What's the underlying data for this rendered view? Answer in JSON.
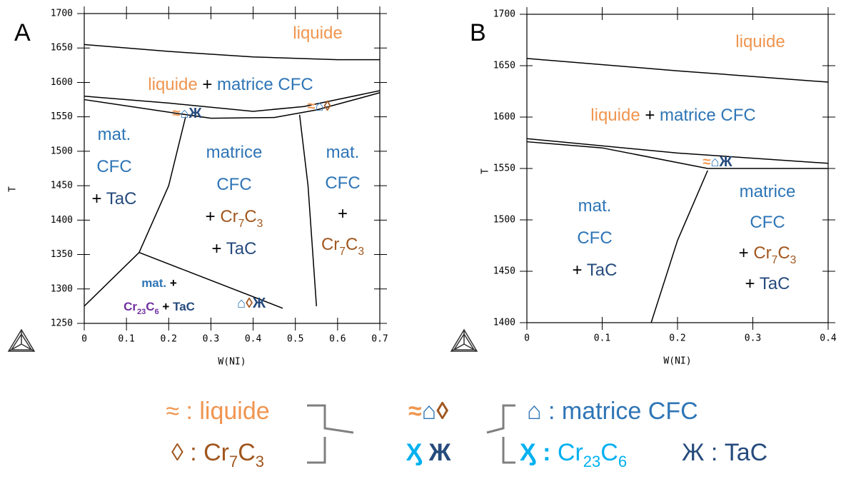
{
  "chart_data": [
    {
      "type": "line",
      "label": "A",
      "xlabel": "W(NI)",
      "ylabel": "T",
      "xlim": [
        0,
        0.7
      ],
      "ylim": [
        1250,
        1700
      ],
      "xticks": [
        0,
        0.1,
        0.2,
        0.3,
        0.4,
        0.5,
        0.6,
        0.7
      ],
      "yticks": [
        1250,
        1300,
        1350,
        1400,
        1450,
        1500,
        1550,
        1600,
        1650,
        1700
      ],
      "series": [
        {
          "color": "#000000",
          "x": [
            0,
            0.2,
            0.4,
            0.6,
            0.7
          ],
          "values": [
            1655,
            1645,
            1637,
            1633,
            1633
          ]
        },
        {
          "color": "#000000",
          "x": [
            0,
            0.2,
            0.4,
            0.52,
            0.7
          ],
          "values": [
            1580,
            1570,
            1558,
            1565,
            1588
          ]
        },
        {
          "color": "#000000",
          "x": [
            0,
            0.22,
            0.3,
            0.45,
            0.55,
            0.7
          ],
          "values": [
            1575,
            1555,
            1548,
            1549,
            1560,
            1585
          ]
        },
        {
          "color": "#000000",
          "x": [
            0.24,
            0.2,
            0.13
          ],
          "values": [
            1550,
            1450,
            1353
          ]
        },
        {
          "color": "#000000",
          "x": [
            0.51,
            0.53,
            0.55
          ],
          "values": [
            1553,
            1450,
            1275
          ]
        },
        {
          "color": "#000000",
          "x": [
            0.13,
            0.47
          ],
          "values": [
            1353,
            1272
          ]
        },
        {
          "color": "#000000",
          "x": [
            0,
            0.13
          ],
          "values": [
            1275,
            1353
          ]
        }
      ],
      "annotations": [
        {
          "lines": [
            [
              {
                "text": "liquide",
                "color": "#f0954f"
              }
            ]
          ]
        },
        {
          "lines": [
            [
              {
                "text": "liquide",
                "color": "#f0954f"
              },
              {
                "text": " + ",
                "color": "#000000"
              },
              {
                "text": "matrice CFC",
                "color": "#2e75b6"
              }
            ]
          ]
        },
        {
          "small": true,
          "lines": [
            [
              {
                "text": "≈",
                "color": "#f0954f",
                "bold": true
              },
              {
                "text": "⌂",
                "color": "#2e75b6",
                "bold": true
              },
              {
                "text": "Ж",
                "color": "#264b7d",
                "bold": true
              }
            ]
          ]
        },
        {
          "small": true,
          "lines": [
            [
              {
                "text": "≈",
                "color": "#f0954f",
                "bold": true
              },
              {
                "text": "⌂",
                "color": "#2e75b6",
                "bold": true
              },
              {
                "text": "◊",
                "color": "#a0561e",
                "bold": true
              }
            ]
          ]
        },
        {
          "lines": [
            [
              {
                "text": "mat.",
                "color": "#2e75b6"
              }
            ],
            [
              {
                "text": "CFC",
                "color": "#2e75b6"
              }
            ],
            [
              {
                "text": "+ ",
                "color": "#000000"
              },
              {
                "text": "TaC",
                "color": "#264b7d"
              }
            ]
          ]
        },
        {
          "lines": [
            [
              {
                "text": "matrice",
                "color": "#2e75b6"
              }
            ],
            [
              {
                "text": "CFC",
                "color": "#2e75b6"
              }
            ],
            [
              {
                "text": "+ ",
                "color": "#000000"
              },
              {
                "text": "Cr",
                "color": "#a0561e"
              },
              {
                "text": "7",
                "color": "#a0561e",
                "sub": true
              },
              {
                "text": "C",
                "color": "#a0561e"
              },
              {
                "text": "3",
                "color": "#a0561e",
                "sub": true
              }
            ],
            [
              {
                "text": "+ ",
                "color": "#000000"
              },
              {
                "text": "TaC",
                "color": "#264b7d"
              }
            ]
          ]
        },
        {
          "lines": [
            [
              {
                "text": "mat.",
                "color": "#2e75b6"
              }
            ],
            [
              {
                "text": "CFC",
                "color": "#2e75b6"
              }
            ],
            [
              {
                "text": "+",
                "color": "#000000"
              }
            ],
            [
              {
                "text": "Cr",
                "color": "#a0561e"
              },
              {
                "text": "7",
                "color": "#a0561e",
                "sub": true
              },
              {
                "text": "C",
                "color": "#a0561e"
              },
              {
                "text": "3",
                "color": "#a0561e",
                "sub": true
              }
            ]
          ]
        },
        {
          "tiny": true,
          "lines": [
            [
              {
                "text": "mat.",
                "color": "#2e75b6",
                "bold": true
              },
              {
                "text": " +",
                "color": "#000000",
                "bold": true
              }
            ],
            [
              {
                "text": "Cr",
                "color": "#7030a0",
                "bold": true
              },
              {
                "text": "23",
                "color": "#7030a0",
                "bold": true,
                "sub": true
              },
              {
                "text": "C",
                "color": "#7030a0",
                "bold": true
              },
              {
                "text": "6",
                "color": "#7030a0",
                "bold": true,
                "sub": true
              },
              {
                "text": " + ",
                "color": "#000000",
                "bold": true
              },
              {
                "text": "TaC",
                "color": "#264b7d",
                "bold": true
              }
            ]
          ]
        },
        {
          "small": true,
          "lines": [
            [
              {
                "text": "⌂",
                "color": "#2e75b6",
                "bold": true
              },
              {
                "text": "◊",
                "color": "#a0561e",
                "bold": true
              },
              {
                "text": "Ж",
                "color": "#264b7d",
                "bold": true
              }
            ]
          ]
        }
      ]
    },
    {
      "type": "line",
      "label": "B",
      "xlabel": "W(NI)",
      "ylabel": "T",
      "xlim": [
        0,
        0.4
      ],
      "ylim": [
        1400,
        1700
      ],
      "xticks": [
        0,
        0.1,
        0.2,
        0.3,
        0.4
      ],
      "yticks": [
        1400,
        1450,
        1500,
        1550,
        1600,
        1650,
        1700
      ],
      "series": [
        {
          "color": "#000000",
          "x": [
            0,
            0.2,
            0.4
          ],
          "values": [
            1657,
            1645,
            1634
          ]
        },
        {
          "color": "#000000",
          "x": [
            0,
            0.2,
            0.4
          ],
          "values": [
            1579,
            1565,
            1555
          ]
        },
        {
          "color": "#000000",
          "x": [
            0,
            0.1,
            0.24,
            0.4
          ],
          "values": [
            1576,
            1570,
            1550,
            1550
          ]
        },
        {
          "color": "#000000",
          "x": [
            0.24,
            0.2,
            0.165
          ],
          "values": [
            1548,
            1480,
            1400
          ]
        }
      ],
      "annotations": [
        {
          "lines": [
            [
              {
                "text": "liquide",
                "color": "#f0954f"
              }
            ]
          ]
        },
        {
          "lines": [
            [
              {
                "text": "liquide",
                "color": "#f0954f"
              },
              {
                "text": " + ",
                "color": "#000000"
              },
              {
                "text": "matrice CFC",
                "color": "#2e75b6"
              }
            ]
          ]
        },
        {
          "small": true,
          "lines": [
            [
              {
                "text": "≈",
                "color": "#f0954f",
                "bold": true
              },
              {
                "text": "⌂",
                "color": "#2e75b6",
                "bold": true
              },
              {
                "text": "Ж",
                "color": "#264b7d",
                "bold": true
              }
            ]
          ]
        },
        {
          "lines": [
            [
              {
                "text": "mat.",
                "color": "#2e75b6"
              }
            ],
            [
              {
                "text": "CFC",
                "color": "#2e75b6"
              }
            ],
            [
              {
                "text": "+ ",
                "color": "#000000"
              },
              {
                "text": "TaC",
                "color": "#264b7d"
              }
            ]
          ]
        },
        {
          "lines": [
            [
              {
                "text": "matrice",
                "color": "#2e75b6"
              }
            ],
            [
              {
                "text": "CFC",
                "color": "#2e75b6"
              }
            ],
            [
              {
                "text": "+ ",
                "color": "#000000"
              },
              {
                "text": "Cr",
                "color": "#a0561e"
              },
              {
                "text": "7",
                "color": "#a0561e",
                "sub": true
              },
              {
                "text": "C",
                "color": "#a0561e"
              },
              {
                "text": "3",
                "color": "#a0561e",
                "sub": true
              }
            ],
            [
              {
                "text": "+ ",
                "color": "#000000"
              },
              {
                "text": "TaC",
                "color": "#264b7d"
              }
            ]
          ]
        }
      ]
    }
  ],
  "key": [
    {
      "lines": [
        [
          {
            "text": "≈ : liquide",
            "color": "#f0954f"
          }
        ]
      ]
    },
    {
      "lines": [
        [
          {
            "text": "◊ : ",
            "color": "#a0561e"
          },
          {
            "text": "Cr",
            "color": "#a0561e"
          },
          {
            "text": "7",
            "color": "#a0561e",
            "sub": true
          },
          {
            "text": "C",
            "color": "#a0561e"
          },
          {
            "text": "3",
            "color": "#a0561e",
            "sub": true
          }
        ]
      ]
    },
    {
      "lines": [
        [
          {
            "text": "≈",
            "color": "#f0954f",
            "bold": true
          },
          {
            "text": "⌂",
            "color": "#2e75b6",
            "bold": true
          },
          {
            "text": "◊",
            "color": "#a0561e",
            "bold": true
          }
        ]
      ]
    },
    {
      "lines": [
        [
          {
            "text": "Ӽ",
            "color": "#00b0f0",
            "bold": true
          },
          {
            "text": " Ж",
            "color": "#264b7d",
            "bold": true
          }
        ]
      ]
    },
    {
      "lines": [
        [
          {
            "text": "⌂ : matrice CFC",
            "color": "#2e75b6"
          }
        ]
      ]
    },
    {
      "lines": [
        [
          {
            "text": "Ӽ : ",
            "color": "#00b0f0",
            "bold": true
          },
          {
            "text": "Cr",
            "color": "#00b0f0"
          },
          {
            "text": "23",
            "color": "#00b0f0",
            "sub": true
          },
          {
            "text": "C",
            "color": "#00b0f0"
          },
          {
            "text": "6",
            "color": "#00b0f0",
            "sub": true
          }
        ]
      ]
    },
    {
      "lines": [
        [
          {
            "text": "Ж  : TaC",
            "color": "#264b7d"
          }
        ]
      ]
    }
  ]
}
